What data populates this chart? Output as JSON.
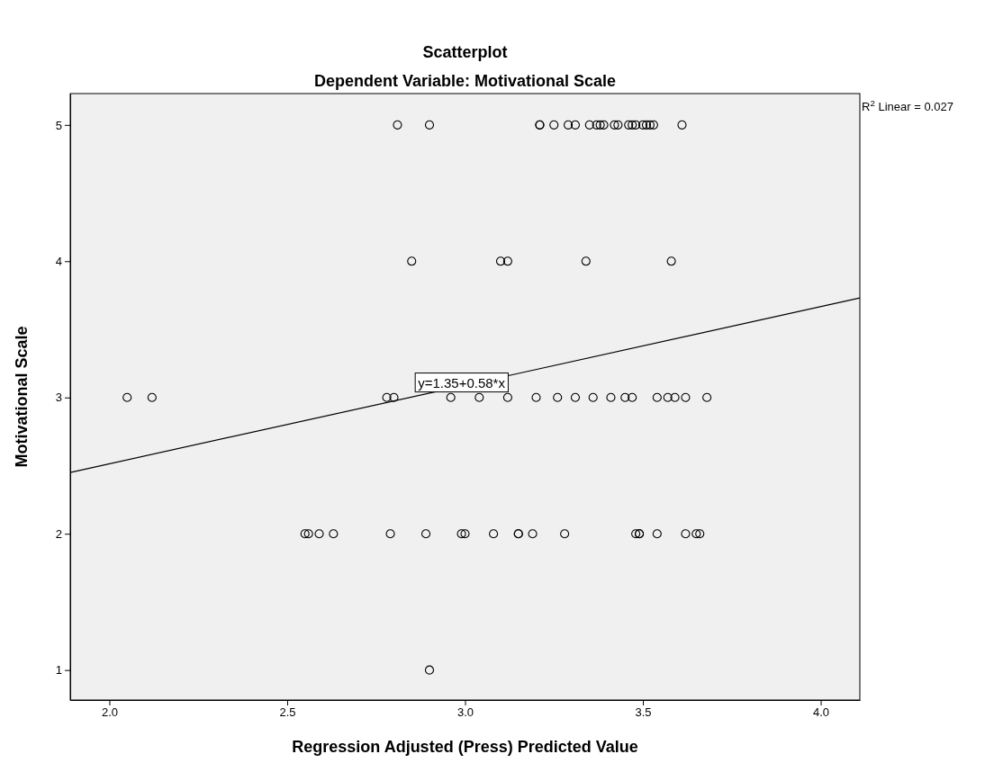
{
  "chart_data": {
    "type": "scatter",
    "title": "Scatterplot",
    "subtitle": "Dependent Variable: Motivational Scale",
    "xlabel": "Regression Adjusted (Press) Predicted Value",
    "ylabel": "Motivational Scale",
    "xlim": [
      1.89,
      4.11
    ],
    "xticks": [
      {
        "value": 2,
        "label": "2.0"
      },
      {
        "value": 2.5,
        "label": "2.5"
      },
      {
        "value": 3,
        "label": "3.0"
      },
      {
        "value": 3.5,
        "label": "3.5"
      },
      {
        "value": 4,
        "label": "4.0"
      }
    ],
    "ylim": [
      0.78,
      5.23
    ],
    "yticks": [
      1,
      2,
      3,
      4,
      5
    ],
    "grid": false,
    "marker": "circle",
    "series": [
      {
        "type": "scatter",
        "color": "#000000",
        "x": [
          2.81,
          2.9,
          3.21,
          3.21,
          3.25,
          3.29,
          3.31,
          3.35,
          3.37,
          3.38,
          3.39,
          3.42,
          3.43,
          3.46,
          3.47,
          3.48,
          3.5,
          3.51,
          3.52,
          3.53,
          3.61,
          2.85,
          3.1,
          3.12,
          3.34,
          3.58,
          2.05,
          2.12,
          2.78,
          2.8,
          2.96,
          3.04,
          3.12,
          3.2,
          3.26,
          3.31,
          3.36,
          3.41,
          3.45,
          3.47,
          3.54,
          3.57,
          3.59,
          3.62,
          3.68,
          2.55,
          2.56,
          2.59,
          2.63,
          2.79,
          2.89,
          2.99,
          3.0,
          3.08,
          3.15,
          3.15,
          3.19,
          3.28,
          3.48,
          3.49,
          3.49,
          3.54,
          3.62,
          3.65,
          3.66,
          2.9
        ],
        "values": [
          5,
          5,
          5,
          5,
          5,
          5,
          5,
          5,
          5,
          5,
          5,
          5,
          5,
          5,
          5,
          5,
          5,
          5,
          5,
          5,
          5,
          4,
          4,
          4,
          4,
          4,
          3,
          3,
          3,
          3,
          3,
          3,
          3,
          3,
          3,
          3,
          3,
          3,
          3,
          3,
          3,
          3,
          3,
          3,
          3,
          2,
          2,
          2,
          2,
          2,
          2,
          2,
          2,
          2,
          2,
          2,
          2,
          2,
          2,
          2,
          2,
          2,
          2,
          2,
          2,
          1
        ]
      },
      {
        "type": "line",
        "color": "#000000",
        "marker": "none",
        "x": [
          1.89,
          4.11
        ],
        "values": [
          2.45,
          3.73
        ]
      }
    ],
    "annotations": [
      {
        "text": "y=1.35+0.58*x",
        "x": 2.99,
        "y": 3.1
      },
      "R$^{2}$ Linear = 0.027"
    ]
  }
}
